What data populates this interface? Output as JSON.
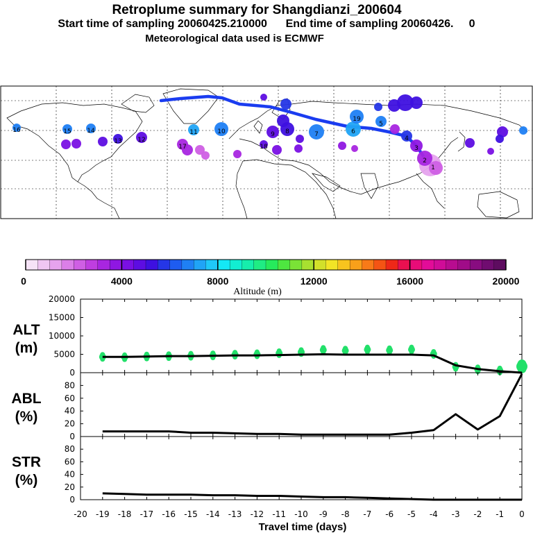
{
  "header": {
    "title": "Retroplume summary for Shangdianzi_200604",
    "subtitle": "Start time of sampling 20060425.210000      End time of sampling 20060426.     0",
    "meteo": "Meteorological data used is ECMWF"
  },
  "colors": {
    "track": "#1a3cf0",
    "green": "#22e06a",
    "line": "#000000",
    "colorbar": [
      "#f6e3f7",
      "#efc6f2",
      "#e6a3ee",
      "#db7fe8",
      "#cf5fe4",
      "#bf3ee0",
      "#a826e0",
      "#8f17e2",
      "#7a10e4",
      "#5d0de2",
      "#3e10e0",
      "#2536e6",
      "#1e5cf0",
      "#1f80f4",
      "#20a4f6",
      "#1fc8f8",
      "#14e8f6",
      "#12eed2",
      "#16eeac",
      "#1fec84",
      "#26ea5c",
      "#4ee640",
      "#7ae236",
      "#a8e030",
      "#d2e02a",
      "#f2e426",
      "#f8c41e",
      "#f8a01a",
      "#f87a18",
      "#f45414",
      "#ee2818",
      "#ea1050",
      "#e80c78",
      "#e20c98",
      "#d00c98",
      "#b80c90",
      "#a00c88",
      "#880c80",
      "#700c70",
      "#5e0c60"
    ]
  },
  "colorbar_labels": {
    "ticks": [
      "0",
      "4000",
      "8000",
      "12000",
      "16000",
      "20000"
    ],
    "title": "Altitude (m)"
  },
  "map": {
    "plume_labels": [
      "1",
      "2",
      "3",
      "4",
      "5",
      "6",
      "7",
      "8",
      "9",
      "10",
      "11",
      "12",
      "13",
      "14",
      "15",
      "16",
      "17",
      "18",
      "19"
    ]
  },
  "chart_data": [
    {
      "type": "line",
      "name": "ALT",
      "ylabel": "ALT (m)",
      "ylim": [
        0,
        20000
      ],
      "yticks": [
        "20000",
        "15000",
        "10000",
        "5000",
        "0"
      ],
      "x": [
        -19,
        -18,
        -17,
        -16,
        -15,
        -14,
        -13,
        -12,
        -11,
        -10,
        -9,
        -8,
        -7,
        -6,
        -5,
        -4,
        -3,
        -2,
        -1,
        0
      ],
      "values": [
        4300,
        4300,
        4400,
        4500,
        4500,
        4600,
        4700,
        4700,
        4800,
        4900,
        5000,
        4900,
        4900,
        4900,
        4900,
        4700,
        2000,
        1000,
        400,
        0
      ],
      "scatter_values": [
        4300,
        4200,
        4400,
        4500,
        4600,
        4700,
        4900,
        5000,
        5300,
        5600,
        6200,
        6000,
        6300,
        6100,
        6300,
        5100,
        1600,
        900,
        600,
        1700
      ]
    },
    {
      "type": "line",
      "name": "ABL",
      "ylabel": "ABL (%)",
      "ylim": [
        0,
        100
      ],
      "yticks": [
        "80",
        "60",
        "40",
        "20",
        "0"
      ],
      "x": [
        -19,
        -18,
        -17,
        -16,
        -15,
        -14,
        -13,
        -12,
        -11,
        -10,
        -9,
        -8,
        -7,
        -6,
        -5,
        -4,
        -3,
        -2,
        -1,
        0
      ],
      "values": [
        8,
        8,
        8,
        8,
        6,
        6,
        5,
        4,
        4,
        3,
        3,
        3,
        3,
        3,
        6,
        10,
        35,
        11,
        32,
        98
      ]
    },
    {
      "type": "line",
      "name": "STR",
      "ylabel": "STR (%)",
      "ylim": [
        0,
        100
      ],
      "yticks": [
        "80",
        "60",
        "40",
        "20",
        "0"
      ],
      "x": [
        -19,
        -18,
        -17,
        -16,
        -15,
        -14,
        -13,
        -12,
        -11,
        -10,
        -9,
        -8,
        -7,
        -6,
        -5,
        -4,
        -3,
        -2,
        -1,
        0
      ],
      "values": [
        10,
        9,
        8,
        8,
        8,
        7,
        7,
        6,
        6,
        5,
        4,
        4,
        3,
        2,
        1,
        0,
        0,
        0,
        0,
        0
      ]
    }
  ],
  "xaxis": {
    "ticks": [
      "-20",
      "-19",
      "-18",
      "-17",
      "-16",
      "-15",
      "-14",
      "-13",
      "-12",
      "-11",
      "-10",
      "-9",
      "-8",
      "-7",
      "-6",
      "-5",
      "-4",
      "-3",
      "-2",
      "-1",
      "0"
    ],
    "xlabel": "Travel time (days)"
  }
}
